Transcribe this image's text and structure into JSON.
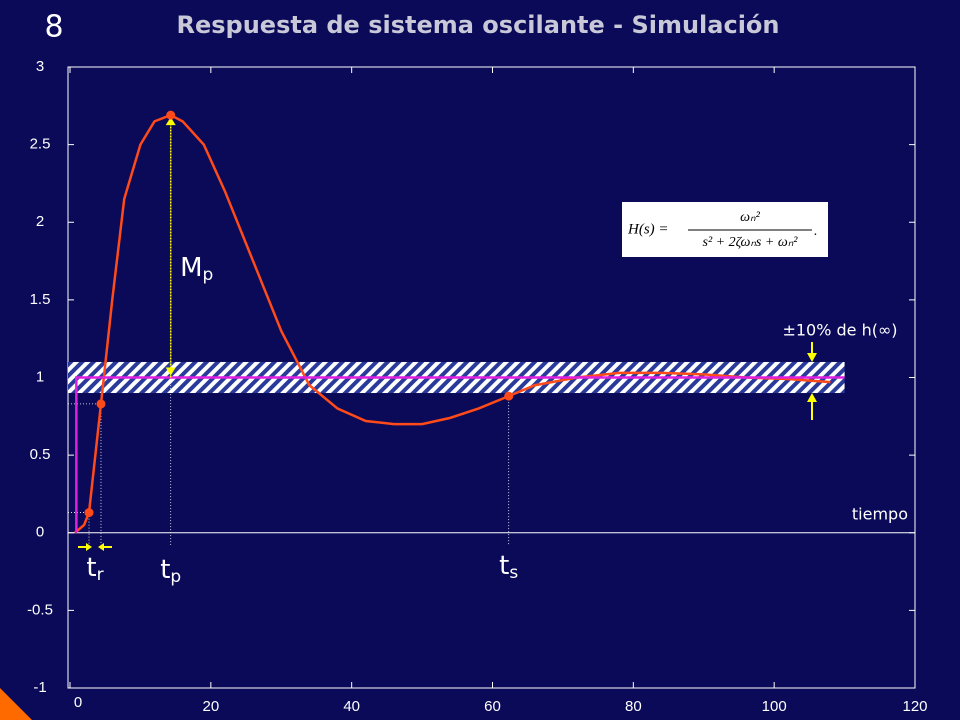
{
  "slide_number": "8",
  "chart_data": {
    "type": "line",
    "title": "Respuesta de sistema oscilante - Simulación",
    "x_label": "tiempo",
    "xlim": [
      0,
      120
    ],
    "xticks": [
      0,
      20,
      40,
      60,
      80,
      100,
      120
    ],
    "ylim": [
      -1,
      3
    ],
    "yticks": [
      3,
      2.5,
      2,
      1.5,
      1,
      0.5,
      0,
      -0.5,
      -1
    ],
    "series": [
      {
        "name": "respuesta",
        "color": "#ff4a1a",
        "x": [
          0.7,
          2,
          2.7,
          4.4,
          6,
          7.7,
          10,
          12,
          14.3,
          16,
          19,
          22,
          26,
          30,
          34,
          38,
          42,
          46,
          50,
          54,
          58,
          62.3,
          66,
          72,
          78,
          84,
          90,
          96,
          102,
          108
        ],
        "values": [
          0,
          0.05,
          0.13,
          0.83,
          1.5,
          2.15,
          2.5,
          2.65,
          2.69,
          2.65,
          2.5,
          2.2,
          1.75,
          1.3,
          0.95,
          0.8,
          0.72,
          0.7,
          0.7,
          0.74,
          0.8,
          0.88,
          0.95,
          1.0,
          1.03,
          1.03,
          1.02,
          1.0,
          0.99,
          0.97
        ]
      },
      {
        "name": "escalón",
        "color": "#e020e0",
        "x": [
          0.9,
          0.9,
          110
        ],
        "values": [
          0,
          1,
          1
        ]
      }
    ],
    "band": {
      "label": "±10% de h(∞)",
      "lower": 0.9,
      "upper": 1.1,
      "x": [
        0,
        110
      ]
    },
    "markers": {
      "color": "#ff4a1a",
      "x": [
        2.7,
        4.4,
        14.3,
        62.3
      ],
      "values": [
        0.13,
        0.83,
        2.69,
        0.88
      ]
    },
    "annotations": [
      {
        "text": "t",
        "sub": "r"
      },
      {
        "text": "t",
        "sub": "p"
      },
      {
        "text": "t",
        "sub": "s"
      },
      {
        "text": "M",
        "sub": "p"
      }
    ],
    "formula": {
      "lhs": "H(s) =",
      "numerator": "ωₙ²",
      "denominator": "s² + 2ζωₙs + ωₙ²",
      "end": "."
    }
  }
}
